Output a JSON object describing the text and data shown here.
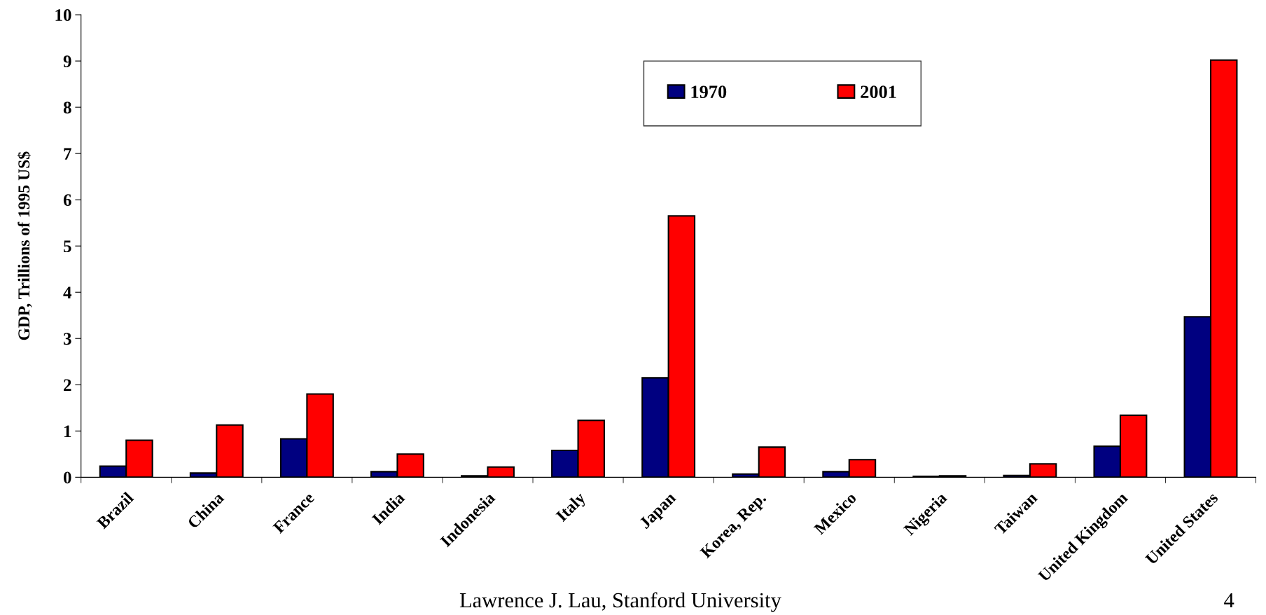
{
  "chart_data": {
    "type": "bar",
    "ylabel": "GDP, Trillions of 1995 US$",
    "categories": [
      "Brazil",
      "China",
      "France",
      "India",
      "Indonesia",
      "Italy",
      "Japan",
      "Korea, Rep.",
      "Mexico",
      "Nigeria",
      "Taiwan",
      "United Kingdom",
      "United States"
    ],
    "series": [
      {
        "name": "1970",
        "color": "#000080",
        "values": [
          0.24,
          0.09,
          0.83,
          0.12,
          0.03,
          0.58,
          2.15,
          0.07,
          0.12,
          0.02,
          0.04,
          0.67,
          3.47
        ]
      },
      {
        "name": "2001",
        "color": "#ff0000",
        "values": [
          0.8,
          1.13,
          1.8,
          0.5,
          0.22,
          1.23,
          5.65,
          0.65,
          0.38,
          0.03,
          0.29,
          1.34,
          9.02
        ]
      }
    ],
    "ylim": [
      0,
      10
    ],
    "yticks": [
      0,
      1,
      2,
      3,
      4,
      5,
      6,
      7,
      8,
      9,
      10
    ],
    "grid": false,
    "legend": "top",
    "annotations": [
      "Lawrence J. Lau, Stanford University",
      "4"
    ]
  }
}
